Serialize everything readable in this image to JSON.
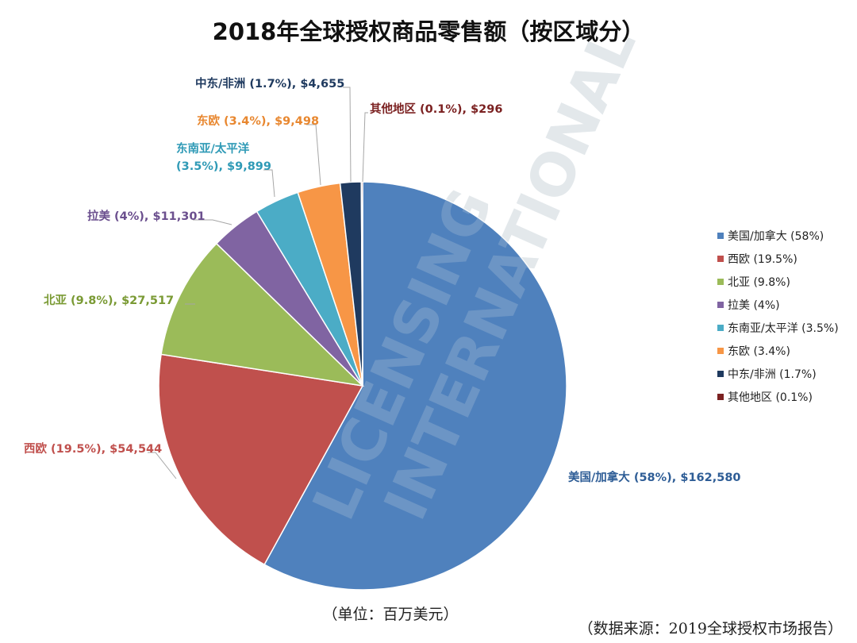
{
  "chart_data": {
    "type": "pie",
    "title": "2018年全球授权商品零售额（按区域分）",
    "unit_note": "（单位：百万美元）",
    "source_note": "（数据来源：2019全球授权市场报告）",
    "watermark": [
      "LICENSING",
      "INTERNATIONAL"
    ],
    "legend_position": "right",
    "slices": [
      {
        "name": "美国/加拿大",
        "percent_label": "58%",
        "value": 162580,
        "value_label": "$162,580",
        "legend": "美国/加拿大 (58%)",
        "data_label": [
          "美国/加拿大 (58%), $162,580"
        ],
        "color": "#4f81bd",
        "label_color": "#2e5d96"
      },
      {
        "name": "西欧",
        "percent_label": "19.5%",
        "value": 54544,
        "value_label": "$54,544",
        "legend": "西欧 (19.5%)",
        "data_label": [
          "西欧 (19.5%), $54,544"
        ],
        "color": "#c0504d",
        "label_color": "#c0504d"
      },
      {
        "name": "北亚",
        "percent_label": "9.8%",
        "value": 27517,
        "value_label": "$27,517",
        "legend": "北亚 (9.8%)",
        "data_label": [
          "北亚 (9.8%), $27,517"
        ],
        "color": "#9bbb59",
        "label_color": "#7a9a34"
      },
      {
        "name": "拉美",
        "percent_label": "4%",
        "value": 11301,
        "value_label": "$11,301",
        "legend": "拉美 (4%)",
        "data_label": [
          "拉美 (4%), $11,301"
        ],
        "color": "#8064a2",
        "label_color": "#6b4f8e"
      },
      {
        "name": "东南亚/太平洋",
        "percent_label": "3.5%",
        "value": 9899,
        "value_label": "$9,899",
        "legend": "东南亚/太平洋 (3.5%)",
        "data_label": [
          "东南亚/太平洋",
          "(3.5%), $9,899"
        ],
        "color": "#4bacc6",
        "label_color": "#2f9ab6"
      },
      {
        "name": "东欧",
        "percent_label": "3.4%",
        "value": 9498,
        "value_label": "$9,498",
        "legend": "东欧 (3.4%)",
        "data_label": [
          "东欧 (3.4%), $9,498"
        ],
        "color": "#f79646",
        "label_color": "#e8872f"
      },
      {
        "name": "中东/非洲",
        "percent_label": "1.7%",
        "value": 4655,
        "value_label": "$4,655",
        "legend": "中东/非洲 (1.7%)",
        "data_label": [
          "中东/非洲 (1.7%), $4,655"
        ],
        "color": "#1f3a5f",
        "label_color": "#1f3a5f"
      },
      {
        "name": "其他地区",
        "percent_label": "0.1%",
        "value": 296,
        "value_label": "$296",
        "legend": "其他地区 (0.1%)",
        "data_label": [
          "其他地区 (0.1%), $296"
        ],
        "color": "#7b2121",
        "label_color": "#7b2121"
      }
    ]
  }
}
